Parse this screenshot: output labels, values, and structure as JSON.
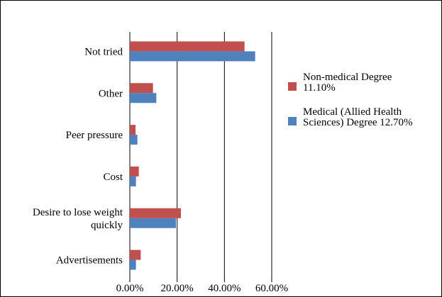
{
  "chart_data": {
    "type": "bar",
    "orientation": "horizontal",
    "title": "",
    "xlabel": "",
    "ylabel": "",
    "xlim": [
      0,
      60
    ],
    "x_ticks": [
      "0.00%",
      "20.00%",
      "40.00%",
      "60.00%"
    ],
    "grid": "vertical",
    "legend_position": "right",
    "categories": [
      [
        "Not tried"
      ],
      [
        "Other"
      ],
      [
        "Peer pressure"
      ],
      [
        "Cost"
      ],
      [
        "Desire to lose weight",
        "quickly"
      ],
      [
        "Advertisements"
      ]
    ],
    "series": [
      {
        "name": [
          "Non-medical Degree",
          "11.10%"
        ],
        "color": "#c0504d",
        "values": [
          48.5,
          9.8,
          2.4,
          3.8,
          21.6,
          4.6
        ]
      },
      {
        "name": [
          "Medical (Allied Health",
          "Sciences) Degree 12.70%"
        ],
        "color": "#4f81bd",
        "values": [
          53.0,
          11.2,
          3.2,
          2.6,
          19.5,
          2.6
        ]
      }
    ]
  }
}
